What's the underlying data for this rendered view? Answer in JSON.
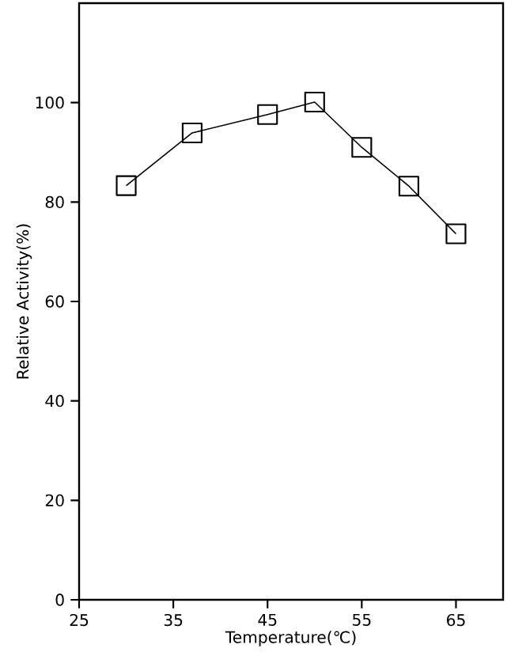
{
  "chart_data": {
    "type": "line",
    "xlabel": "Temperature(℃)",
    "ylabel": "Relative Activity(%)",
    "x": [
      30,
      37,
      45,
      50,
      55,
      60,
      65
    ],
    "series": [
      {
        "color": "#000000",
        "values": [
          83.3,
          93.9,
          97.6,
          100.1,
          91.0,
          83.2,
          73.6
        ]
      }
    ],
    "xlim": [
      25,
      70
    ],
    "xticks": [
      25,
      35,
      45,
      55,
      65
    ],
    "ylim": [
      0,
      120
    ],
    "yticks": [
      0,
      20,
      40,
      60,
      80,
      100
    ],
    "marker": "square",
    "line_style": "solid",
    "grid": false
  }
}
